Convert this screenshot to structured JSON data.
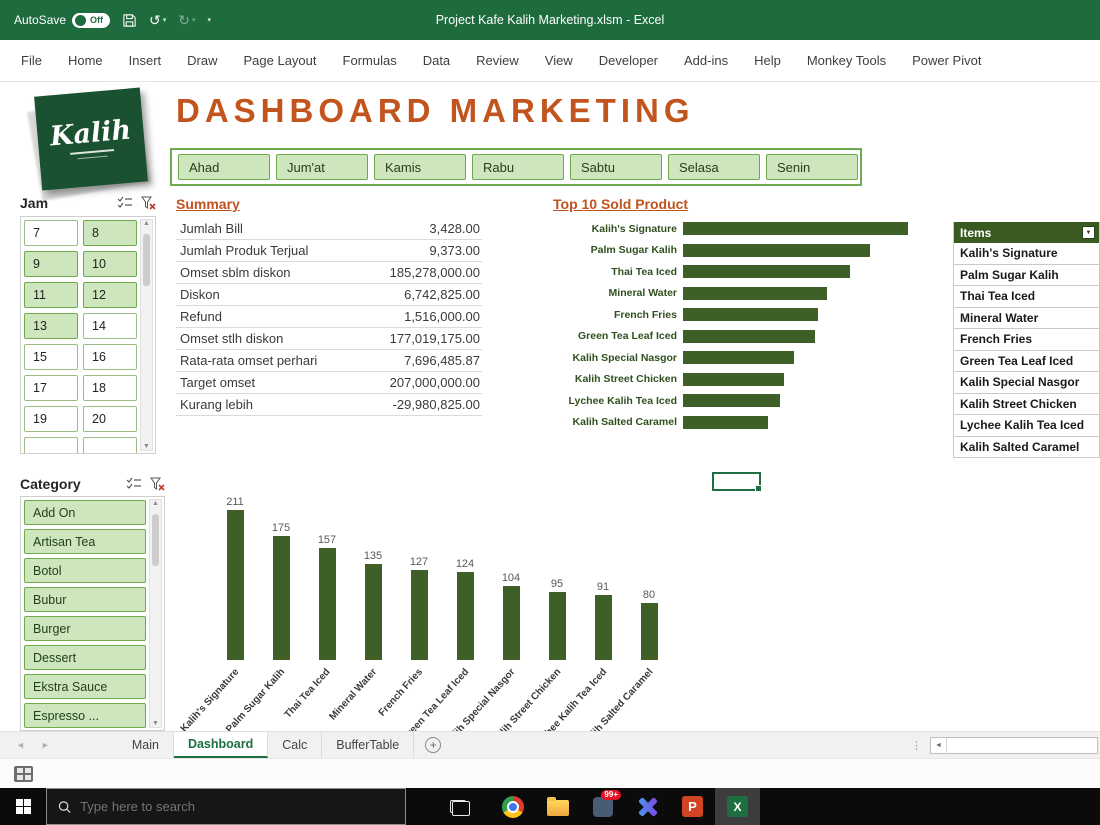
{
  "titlebar": {
    "autosave_label": "AutoSave",
    "autosave_state": "Off",
    "title": "Project Kafe Kalih Marketing.xlsm - Excel"
  },
  "ribbon_tabs": [
    "File",
    "Home",
    "Insert",
    "Draw",
    "Page Layout",
    "Formulas",
    "Data",
    "Review",
    "View",
    "Developer",
    "Add-ins",
    "Help",
    "Monkey Tools",
    "Power Pivot"
  ],
  "dashboard": {
    "logo_text": "Kalih",
    "title": "DASHBOARD MARKETING"
  },
  "day_slicer": [
    "Ahad",
    "Jum'at",
    "Kamis",
    "Rabu",
    "Sabtu",
    "Selasa",
    "Senin"
  ],
  "jam_slicer": {
    "title": "Jam",
    "items": [
      {
        "label": "7",
        "selected": false
      },
      {
        "label": "8",
        "selected": true
      },
      {
        "label": "9",
        "selected": true
      },
      {
        "label": "10",
        "selected": true
      },
      {
        "label": "11",
        "selected": true
      },
      {
        "label": "12",
        "selected": true
      },
      {
        "label": "13",
        "selected": true
      },
      {
        "label": "14",
        "selected": false
      },
      {
        "label": "15",
        "selected": false
      },
      {
        "label": "16",
        "selected": false
      },
      {
        "label": "17",
        "selected": false
      },
      {
        "label": "18",
        "selected": false
      },
      {
        "label": "19",
        "selected": false
      },
      {
        "label": "20",
        "selected": false
      }
    ]
  },
  "category_slicer": {
    "title": "Category",
    "items": [
      "Add On",
      "Artisan Tea",
      "Botol",
      "Bubur",
      "Burger",
      "Dessert",
      "Ekstra Sauce",
      "Espresso ..."
    ]
  },
  "summary": {
    "title": "Summary",
    "rows": [
      {
        "label": "Jumlah Bill",
        "value": "3,428.00"
      },
      {
        "label": "Jumlah Produk Terjual",
        "value": "9,373.00"
      },
      {
        "label": "Omset sblm diskon",
        "value": "185,278,000.00"
      },
      {
        "label": "Diskon",
        "value": "6,742,825.00"
      },
      {
        "label": "Refund",
        "value": "1,516,000.00"
      },
      {
        "label": "Omset stlh diskon",
        "value": "177,019,175.00"
      },
      {
        "label": "Rata-rata omset perhari",
        "value": "7,696,485.87"
      },
      {
        "label": "Target omset",
        "value": "207,000,000.00"
      },
      {
        "label": "Kurang lebih",
        "value": "-29,980,825.00"
      }
    ]
  },
  "chart_data": [
    {
      "type": "bar",
      "orientation": "horizontal",
      "title": "Top 10 Sold Product",
      "categories": [
        "Kalih's Signature",
        "Palm Sugar Kalih",
        "Thai Tea Iced",
        "Mineral Water",
        "French Fries",
        "Green Tea Leaf Iced",
        "Kalih Special Nasgor",
        "Kalih Street Chicken",
        "Lychee Kalih Tea Iced",
        "Kalih Salted Caramel"
      ],
      "values": [
        211,
        175,
        157,
        135,
        127,
        124,
        104,
        95,
        91,
        80
      ],
      "bar_color": "#3e5f26",
      "value_axis_visible": false,
      "value_labels_shown": false
    },
    {
      "type": "bar",
      "orientation": "vertical",
      "title": "",
      "categories": [
        "Kalih's Signature",
        "Palm Sugar Kalih",
        "Thai Tea Iced",
        "Mineral Water",
        "French Fries",
        "Green Tea Leaf Iced",
        "Kalih Special Nasgor",
        "Kalih Street Chicken",
        "Lychee Kalih Tea Iced",
        "Kalih Salted Caramel"
      ],
      "values": [
        211,
        175,
        157,
        135,
        127,
        124,
        104,
        95,
        91,
        80
      ],
      "bar_color": "#3e5f26",
      "value_axis_visible": false,
      "value_labels_shown": true
    }
  ],
  "items_table": {
    "header": "Items",
    "rows": [
      "Kalih's Signature",
      "Palm Sugar Kalih",
      "Thai Tea Iced",
      "Mineral Water",
      "French Fries",
      "Green Tea Leaf Iced",
      "Kalih Special Nasgor",
      "Kalih Street Chicken",
      "Lychee Kalih Tea Iced",
      "Kalih Salted Caramel"
    ]
  },
  "sheet_tabs": {
    "tabs": [
      {
        "label": "Main",
        "active": false
      },
      {
        "label": "Dashboard",
        "active": true
      },
      {
        "label": "Calc",
        "active": false
      },
      {
        "label": "BufferTable",
        "active": false
      }
    ]
  },
  "taskbar": {
    "search_placeholder": "Type here to search",
    "badge": "99+"
  },
  "colors": {
    "titlebar_green": "#1e6b3e",
    "bar_green": "#3e5f26",
    "slicer_fill": "#cde6bd",
    "slicer_border": "#6faa4e",
    "accent_orange": "#c0531f",
    "items_header_green": "#3a5a22"
  }
}
